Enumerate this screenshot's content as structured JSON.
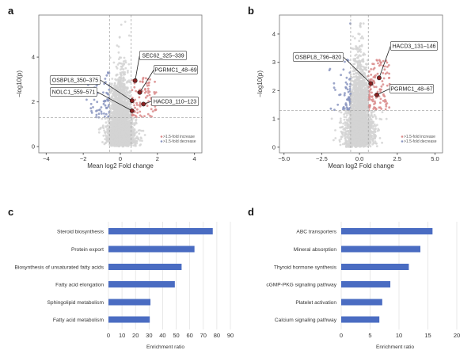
{
  "colors": {
    "increase": "#d98a8a",
    "decrease": "#8a95c0",
    "neutral": "#d3d3d3",
    "highlight": "#8b2020",
    "bar": "#4a6cc2"
  },
  "chart_data": [
    {
      "panel": "a",
      "type": "scatter",
      "xlabel": "Mean log2 Fold change",
      "ylabel": "−log10(p)",
      "xlim": [
        -4.4,
        4.4
      ],
      "ylim": [
        -0.28,
        5.88
      ],
      "xticks": [
        "−4",
        "−2",
        "0",
        "2",
        "4"
      ],
      "xtick_values": [
        -4,
        -2,
        0,
        2,
        4
      ],
      "yticks": [
        "0",
        "2",
        "4"
      ],
      "ytick_values": [
        0,
        2,
        4
      ],
      "thresholds": {
        "fold_change_log2": [
          -0.585,
          0.585
        ],
        "neg_log10_p": 1.3
      },
      "legend": [
        ">1.5-fold increase",
        ">1.5-fold decrease"
      ],
      "labeled_points": [
        {
          "label": "SEC62_325–339",
          "x": 0.8,
          "y": 2.95
        },
        {
          "label": "PGRMC1_48–69",
          "x": 1.05,
          "y": 2.42
        },
        {
          "label": "OSBPL8_350–375",
          "x": 0.63,
          "y": 2.05
        },
        {
          "label": "NOLC1_559–571",
          "x": 0.63,
          "y": 1.6
        },
        {
          "label": "HACD3_110–123",
          "x": 1.25,
          "y": 1.9
        }
      ]
    },
    {
      "panel": "b",
      "type": "scatter",
      "xlabel": "Mean log2 Fold change",
      "ylabel": "−log10(p)",
      "xlim": [
        -5.3,
        5.5
      ],
      "ylim": [
        -0.2,
        4.67
      ],
      "xticks": [
        "−5.0",
        "−2.5",
        "0.0",
        "2.5",
        "5.0"
      ],
      "xtick_values": [
        -5,
        -2.5,
        0,
        2.5,
        5
      ],
      "yticks": [
        "0",
        "1",
        "2",
        "3",
        "4"
      ],
      "ytick_values": [
        0,
        1,
        2,
        3,
        4
      ],
      "thresholds": {
        "fold_change_log2": [
          -0.585,
          0.585
        ],
        "neg_log10_p": 1.3
      },
      "legend": [
        ">1.5-fold increase",
        ">1.5-fold decrease"
      ],
      "labeled_points": [
        {
          "label": "HACD3_131–146",
          "x": 1.3,
          "y": 2.45
        },
        {
          "label": "OSBPL8_796–820",
          "x": 0.75,
          "y": 2.25
        },
        {
          "label": "PGRMC1_48–67",
          "x": 1.15,
          "y": 1.85
        }
      ]
    },
    {
      "panel": "c",
      "type": "bar",
      "orientation": "horizontal",
      "xlabel": "Enrichment ratio",
      "xlim": [
        0,
        90
      ],
      "xticks": [
        "0",
        "10",
        "20",
        "30",
        "40",
        "50",
        "60",
        "70",
        "80",
        "90"
      ],
      "xtick_values": [
        0,
        10,
        20,
        30,
        40,
        50,
        60,
        70,
        80,
        90
      ],
      "categories": [
        "Steroid biosynthesis",
        "Protein export",
        "Biosynthesis of unsaturated fatty acids",
        "Fatty acid elongation",
        "Sphingolipid metabolism",
        "Fatty acid metabolism"
      ],
      "values": [
        77,
        63.5,
        54,
        49,
        31,
        30.5
      ]
    },
    {
      "panel": "d",
      "type": "bar",
      "orientation": "horizontal",
      "xlabel": "Enrichment ratio",
      "xlim": [
        0,
        20
      ],
      "xticks": [
        "0",
        "5",
        "10",
        "15",
        "20"
      ],
      "xtick_values": [
        0,
        5,
        10,
        15,
        20
      ],
      "categories": [
        "ABC transporters",
        "Mineral absorption",
        "Thyroid hormone synthesis",
        "cGMP-PKG signaling pathway",
        "Platelet activation",
        "Calcium signaling pathway"
      ],
      "values": [
        15.8,
        13.7,
        11.7,
        8.5,
        7.1,
        6.6
      ]
    }
  ]
}
